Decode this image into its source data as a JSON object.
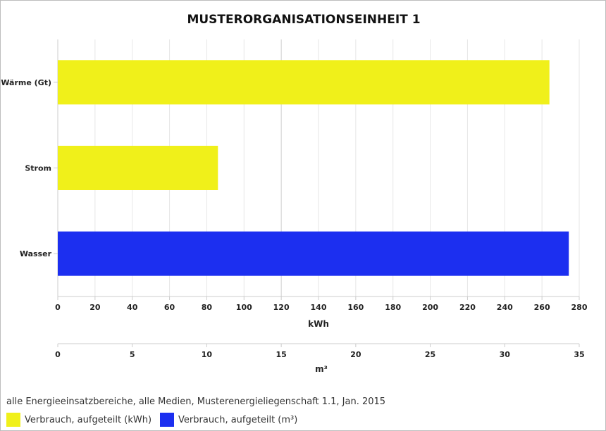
{
  "chart_data": {
    "type": "bar",
    "orientation": "horizontal",
    "title": "MUSTERORGANISATIONSEINHEIT 1",
    "categories": [
      "Wärme (Gt)",
      "Strom",
      "Wasser"
    ],
    "series": [
      {
        "name": "Verbrauch, aufgeteilt (kWh)",
        "axis": "kWh",
        "color": "#f0f01a",
        "values": {
          "Wärme (Gt)": 264,
          "Strom": 86
        }
      },
      {
        "name": "Verbrauch, aufgeteilt (m³)",
        "axis": "m³",
        "color": "#1c2ff0",
        "values": {
          "Wasser": 34.3
        }
      }
    ],
    "x_axis_primary": {
      "label": "kWh",
      "range": [
        0,
        280
      ],
      "ticks": [
        0,
        20,
        40,
        60,
        80,
        100,
        120,
        140,
        160,
        180,
        200,
        220,
        240,
        260,
        280
      ]
    },
    "x_axis_secondary": {
      "label": "m³",
      "range": [
        0,
        35
      ],
      "ticks": [
        0,
        5,
        10,
        15,
        20,
        25,
        30,
        35
      ]
    },
    "grid": true,
    "legend_position": "bottom-left"
  },
  "caption": "alle Energieeinsatzbereiche, alle Medien, Musterenergieliegenschaft 1.1, Jan. 2015",
  "legend": [
    {
      "label": "Verbrauch, aufgeteilt (kWh)",
      "color": "#f0f01a"
    },
    {
      "label": "Verbrauch, aufgeteilt (m³)",
      "color": "#1c2ff0"
    }
  ]
}
